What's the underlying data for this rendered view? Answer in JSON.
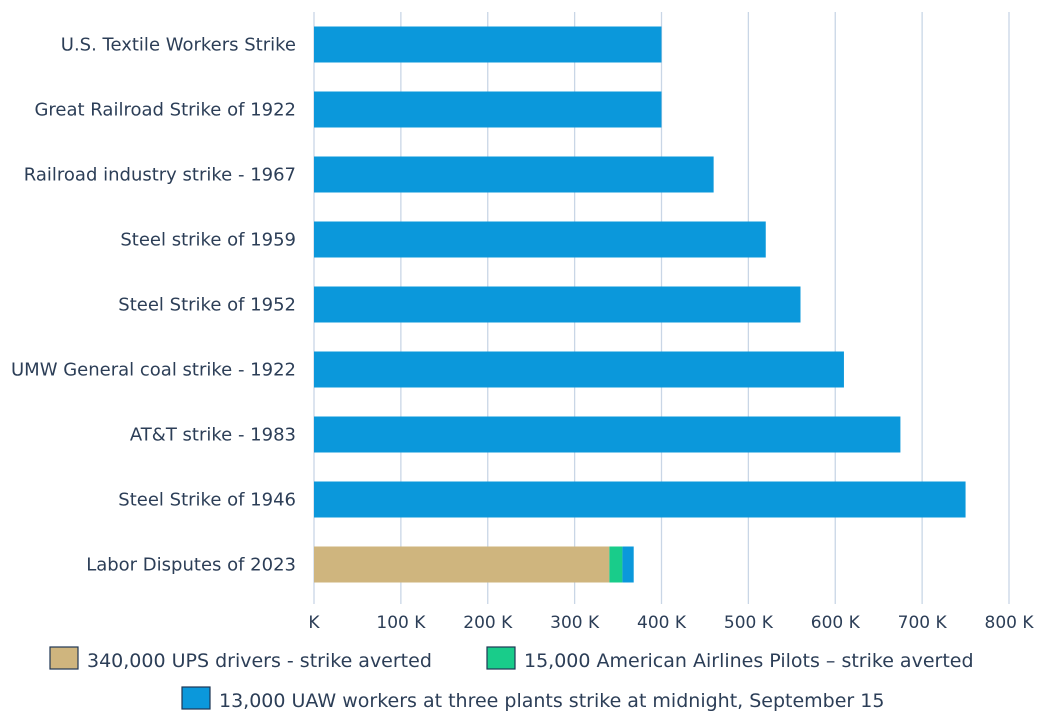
{
  "chart_data": {
    "type": "bar",
    "orientation": "horizontal",
    "stacked": true,
    "categories": [
      "U.S. Textile Workers Strike",
      "Great Railroad Strike of 1922",
      "Railroad industry strike - 1967",
      "Steel strike of 1959",
      "Steel Strike of 1952",
      "UMW General coal strike - 1922",
      "AT&T strike - 1983",
      "Steel Strike of 1946",
      "Labor Disputes of 2023"
    ],
    "values": [
      400000,
      400000,
      460000,
      520000,
      560000,
      610000,
      675000,
      750000,
      null
    ],
    "stacked_series": [
      {
        "name": "340,000 UPS drivers - strike averted",
        "category": "Labor Disputes of 2023",
        "value": 340000,
        "color": "#cfb57e"
      },
      {
        "name": "15,000 American Airlines Pilots – strike averted",
        "category": "Labor Disputes of 2023",
        "value": 15000,
        "color": "#19cc8a"
      },
      {
        "name": "13,000 UAW workers at three plants strike at midnight, September 15",
        "category": "Labor Disputes of 2023",
        "value": 13000,
        "color": "#0b98db"
      }
    ],
    "bar_color": "#0b98db",
    "x_ticks": [
      "K",
      "100 K",
      "200 K",
      "300 K",
      "400 K",
      "500 K",
      "600 K",
      "700 K",
      "800 K"
    ],
    "xlim": [
      0,
      800000
    ],
    "grid": "vertical",
    "legend_position": "bottom",
    "title": "",
    "xlabel": "",
    "ylabel": ""
  }
}
